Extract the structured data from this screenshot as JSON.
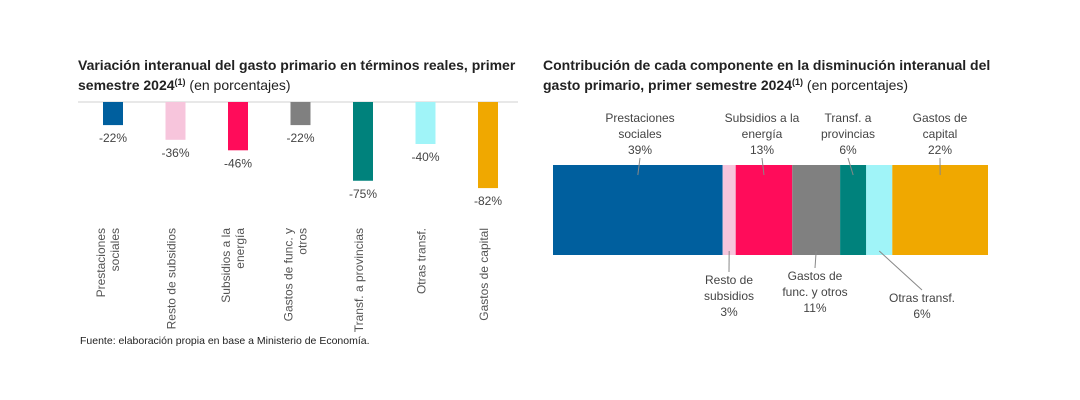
{
  "left_chart": {
    "title_bold": "Variación interanual del gasto primario en términos reales, primer semestre 2024",
    "title_sup": "(1)",
    "title_unit": " (en porcentajes)"
  },
  "right_chart": {
    "title_bold": "Contribución de cada componente en la disminución interanual del gasto primario, primer semestre 2024",
    "title_sup": "(1)",
    "title_unit": " (en porcentajes)"
  },
  "source": "Fuente: elaboración propia en base a Ministerio de Economía.",
  "chart_data": [
    {
      "type": "bar",
      "title": "Variación interanual del gasto primario en términos reales, primer semestre 2024 (en porcentajes)",
      "categories": [
        "Prestaciones sociales",
        "Resto de subsidios",
        "Subsidios a la energía",
        "Gastos de func. y otros",
        "Transf. a provincias",
        "Otras transf.",
        "Gastos de capital"
      ],
      "values": [
        -22,
        -36,
        -46,
        -22,
        -75,
        -40,
        -82
      ],
      "labels": [
        "-22%",
        "-36%",
        "-46%",
        "-22%",
        "-75%",
        "-40%",
        "-82%"
      ],
      "colors": [
        "#005f9e",
        "#f7c5dc",
        "#ff0c5a",
        "#808080",
        "#00827c",
        "#a0f4f8",
        "#f0a800"
      ],
      "ylim": [
        -100,
        0
      ],
      "xlabel": "",
      "ylabel": ""
    },
    {
      "type": "bar",
      "stacked": true,
      "orientation": "horizontal",
      "title": "Contribución de cada componente en la disminución interanual del gasto primario, primer semestre 2024 (en porcentajes)",
      "categories": [
        "Prestaciones sociales",
        "Resto de subsidios",
        "Subsidios a la energía",
        "Gastos de func. y otros",
        "Transf. a provincias",
        "Otras transf.",
        "Gastos de capital"
      ],
      "values": [
        39,
        3,
        13,
        11,
        6,
        6,
        22
      ],
      "label_text": [
        "39%",
        "3%",
        "13%",
        "11%",
        "6%",
        "6%",
        "22%"
      ],
      "label_names": [
        [
          "Prestaciones",
          "sociales"
        ],
        [
          "Resto de",
          "subsidios"
        ],
        [
          "Subsidios a la",
          "energía"
        ],
        [
          "Gastos de",
          "func. y otros"
        ],
        [
          "Transf. a",
          "provincias"
        ],
        [
          "Otras transf."
        ],
        [
          "Gastos de",
          "capital"
        ]
      ],
      "label_position": [
        "above",
        "below",
        "above",
        "below",
        "above",
        "below",
        "above"
      ],
      "colors": [
        "#005f9e",
        "#f7c5dc",
        "#ff0c5a",
        "#808080",
        "#00827c",
        "#a0f4f8",
        "#f0a800"
      ]
    }
  ]
}
